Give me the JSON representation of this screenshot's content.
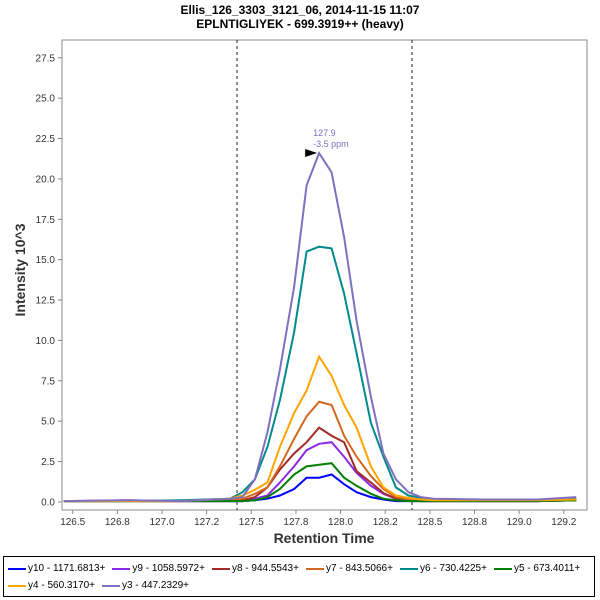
{
  "chart_data": {
    "type": "line",
    "title": "Ellis_126_3303_3121_06, 2014-11-15 11:07",
    "subtitle": "EPLNTIGLIYEK - 699.3919++ (heavy)",
    "xlabel": "Retention Time",
    "ylabel": "Intensity 10^3",
    "xlim": [
      126.44,
      129.38
    ],
    "ylim": [
      -0.5,
      28.6
    ],
    "xticks": [
      126.5,
      126.75,
      127.0,
      127.25,
      127.5,
      127.75,
      128.0,
      128.25,
      128.5,
      128.75,
      129.0,
      129.25
    ],
    "xtick_labels": [
      "126.5",
      "126.8",
      "127.0",
      "127.2",
      "127.5",
      "127.8",
      "128.0",
      "128.2",
      "128.5",
      "128.8",
      "129.0",
      "129.2"
    ],
    "yticks": [
      0,
      2.5,
      5,
      7.5,
      10,
      12.5,
      15,
      17.5,
      20,
      22.5,
      25,
      27.5
    ],
    "ytick_labels": [
      "0.0",
      "2.5",
      "5.0",
      "7.5",
      "10.0",
      "12.5",
      "15.0",
      "17.5",
      "20.0",
      "22.5",
      "25.0",
      "27.5"
    ],
    "integration_boundaries": [
      127.42,
      128.4
    ],
    "peak_annotation": {
      "x": 127.88,
      "y": 21.6,
      "rt_label": "127.9",
      "ppm_label": "-3.5 ppm"
    },
    "x": [
      126.45,
      126.8,
      127.1,
      127.38,
      127.45,
      127.52,
      127.59,
      127.66,
      127.74,
      127.81,
      127.88,
      127.95,
      128.02,
      128.09,
      128.17,
      128.24,
      128.31,
      128.38,
      128.45,
      128.52,
      128.8,
      129.1,
      129.32
    ],
    "series": [
      {
        "name": "y10 - 1171.6813+",
        "color": "#0000ff",
        "values": [
          0.05,
          0.05,
          0.05,
          0.05,
          0.05,
          0.1,
          0.2,
          0.4,
          0.8,
          1.5,
          1.5,
          1.7,
          1.1,
          0.6,
          0.3,
          0.15,
          0.05,
          0.05,
          0.05,
          0.05,
          0.05,
          0.05,
          0.1
        ]
      },
      {
        "name": "y9 - 1058.5972+",
        "color": "#8a2be2",
        "values": [
          0.05,
          0.1,
          0.05,
          0.05,
          0.05,
          0.2,
          0.4,
          1.2,
          2.2,
          3.2,
          3.6,
          3.7,
          2.8,
          1.8,
          1.0,
          0.5,
          0.2,
          0.1,
          0.05,
          0.05,
          0.05,
          0.05,
          0.1
        ]
      },
      {
        "name": "y8 - 944.5543+",
        "color": "#a52a2a",
        "values": [
          0.05,
          0.05,
          0.05,
          0.05,
          0.1,
          0.3,
          0.9,
          2.0,
          3.0,
          3.7,
          4.6,
          4.1,
          3.7,
          1.9,
          1.2,
          0.55,
          0.2,
          0.1,
          0.05,
          0.05,
          0.05,
          0.05,
          0.1
        ]
      },
      {
        "name": "y7 - 843.5066+",
        "color": "#d2691e",
        "values": [
          0.05,
          0.05,
          0.05,
          0.1,
          0.2,
          0.5,
          0.9,
          2.2,
          3.9,
          5.3,
          6.2,
          6.0,
          4.1,
          2.8,
          1.6,
          0.8,
          0.3,
          0.15,
          0.1,
          0.1,
          0.05,
          0.05,
          0.1
        ]
      },
      {
        "name": "y6 - 730.4225+",
        "color": "#008b8b",
        "values": [
          0.05,
          0.05,
          0.1,
          0.2,
          0.6,
          1.4,
          3.4,
          6.3,
          10.5,
          15.5,
          15.8,
          15.7,
          12.9,
          9.2,
          4.9,
          2.8,
          0.9,
          0.4,
          0.25,
          0.15,
          0.1,
          0.1,
          0.2
        ]
      },
      {
        "name": "y5 - 673.4011+",
        "color": "#008000",
        "values": [
          0.05,
          0.05,
          0.05,
          0.05,
          0.05,
          0.1,
          0.3,
          0.8,
          1.7,
          2.2,
          2.3,
          2.4,
          1.5,
          1.0,
          0.5,
          0.2,
          0.1,
          0.05,
          0.05,
          0.05,
          0.05,
          0.05,
          0.1
        ]
      },
      {
        "name": "y4 - 560.3170+",
        "color": "#ffa500",
        "values": [
          0.05,
          0.05,
          0.05,
          0.2,
          0.4,
          0.75,
          1.2,
          3.4,
          5.5,
          6.9,
          9.0,
          7.8,
          6.0,
          4.6,
          2.2,
          0.9,
          0.4,
          0.25,
          0.15,
          0.1,
          0.1,
          0.1,
          0.15
        ]
      },
      {
        "name": "y3 - 447.2329+",
        "color": "#8070bf",
        "values": [
          0.05,
          0.1,
          0.05,
          0.2,
          0.3,
          1.4,
          4.3,
          8.2,
          13.3,
          19.6,
          21.6,
          20.4,
          16.4,
          11.2,
          6.5,
          3.0,
          1.4,
          0.6,
          0.3,
          0.2,
          0.15,
          0.15,
          0.3
        ]
      }
    ],
    "grid": false,
    "legend_placement": "bottom"
  }
}
